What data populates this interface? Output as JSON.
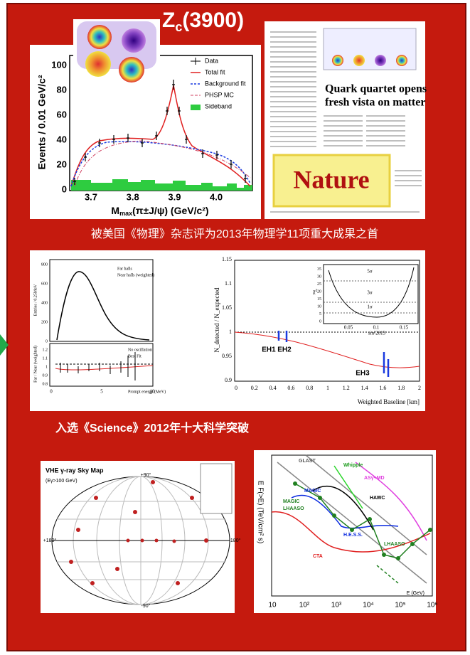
{
  "title": {
    "symbol": "Z",
    "subscript": "c",
    "suffix": "(3900)"
  },
  "zc_plot": {
    "y_label": "Events / 0.01 GeV/c²",
    "x_label": {
      "symbol": "M",
      "subscript": "max",
      "rest": "(π±J/ψ) (GeV/c²)"
    },
    "yticks": [
      "0",
      "20",
      "40",
      "60",
      "80",
      "100"
    ],
    "xticks": [
      "3.7",
      "3.8",
      "3.9",
      "4.0"
    ],
    "legend": [
      "Data",
      "Total fit",
      "Background fit",
      "PHSP MC",
      "Sideband"
    ]
  },
  "nature": {
    "headline": [
      "Quark quartet opens",
      "fresh vista on matter"
    ],
    "logo": "Nature"
  },
  "caption_1": "被美国《物理》杂志评为2013年物理学11项重大成果之首",
  "daya_bay": {
    "spectrum": {
      "y_label": "Entries / 0.25MeV",
      "yticks": [
        "0",
        "200",
        "400",
        "600",
        "800"
      ],
      "legend": [
        "Far halls",
        "Near halls (weighted)"
      ],
      "ratio_y_label": "Far / Near (weighted)",
      "ratio_yticks": [
        "0.8",
        "0.9",
        "1",
        "1.1",
        "1.2"
      ],
      "ratio_legend": [
        "No oscillation",
        "Best Fit"
      ],
      "xticks": [
        "0",
        "5",
        "10"
      ],
      "x_label": "Prompt energy (MeV)"
    },
    "baseline": {
      "y_label": "N_detected / N_expected",
      "yticks": [
        "0.9",
        "0.95",
        "1",
        "1.05",
        "1.1",
        "1.15"
      ],
      "xticks": [
        "0",
        "0.2",
        "0.4",
        "0.6",
        "0.8",
        "1",
        "1.2",
        "1.4",
        "1.6",
        "1.8",
        "2"
      ],
      "x_label": "Weighted Baseline [km]",
      "halls": [
        "EH1",
        "EH2",
        "EH3"
      ],
      "inset": {
        "y_label": "χ²",
        "yticks": [
          "0",
          "5",
          "10",
          "15",
          "20",
          "25",
          "30",
          "35"
        ],
        "xticks": [
          "0.05",
          "0.1",
          "0.15"
        ],
        "x_label": "sin²2θ13",
        "levels": [
          "5σ",
          "3σ",
          "1σ"
        ]
      }
    }
  },
  "caption_2": "入选《Science》2012年十大科学突破",
  "sky_map": {
    "title": "VHE γ-ray Sky Map",
    "subtitle": "(Eγ>100 GeV)",
    "coords": [
      "+90°",
      "-90°",
      "+180°",
      "-180°"
    ]
  },
  "sensitivity": {
    "y_label": "E F(>E) (TeV/cm² s)",
    "xticks": [
      "10",
      "10²",
      "10³",
      "10⁴",
      "10⁵",
      "10⁶"
    ],
    "x_label": "E (GeV)",
    "labels": [
      "GLAST",
      "Whipple",
      "ASγ+MD",
      "MAGIC",
      "HAWC",
      "MAGIC",
      "LHAASO",
      "H.E.S.S.",
      "LHAASO",
      "CTA"
    ]
  }
}
